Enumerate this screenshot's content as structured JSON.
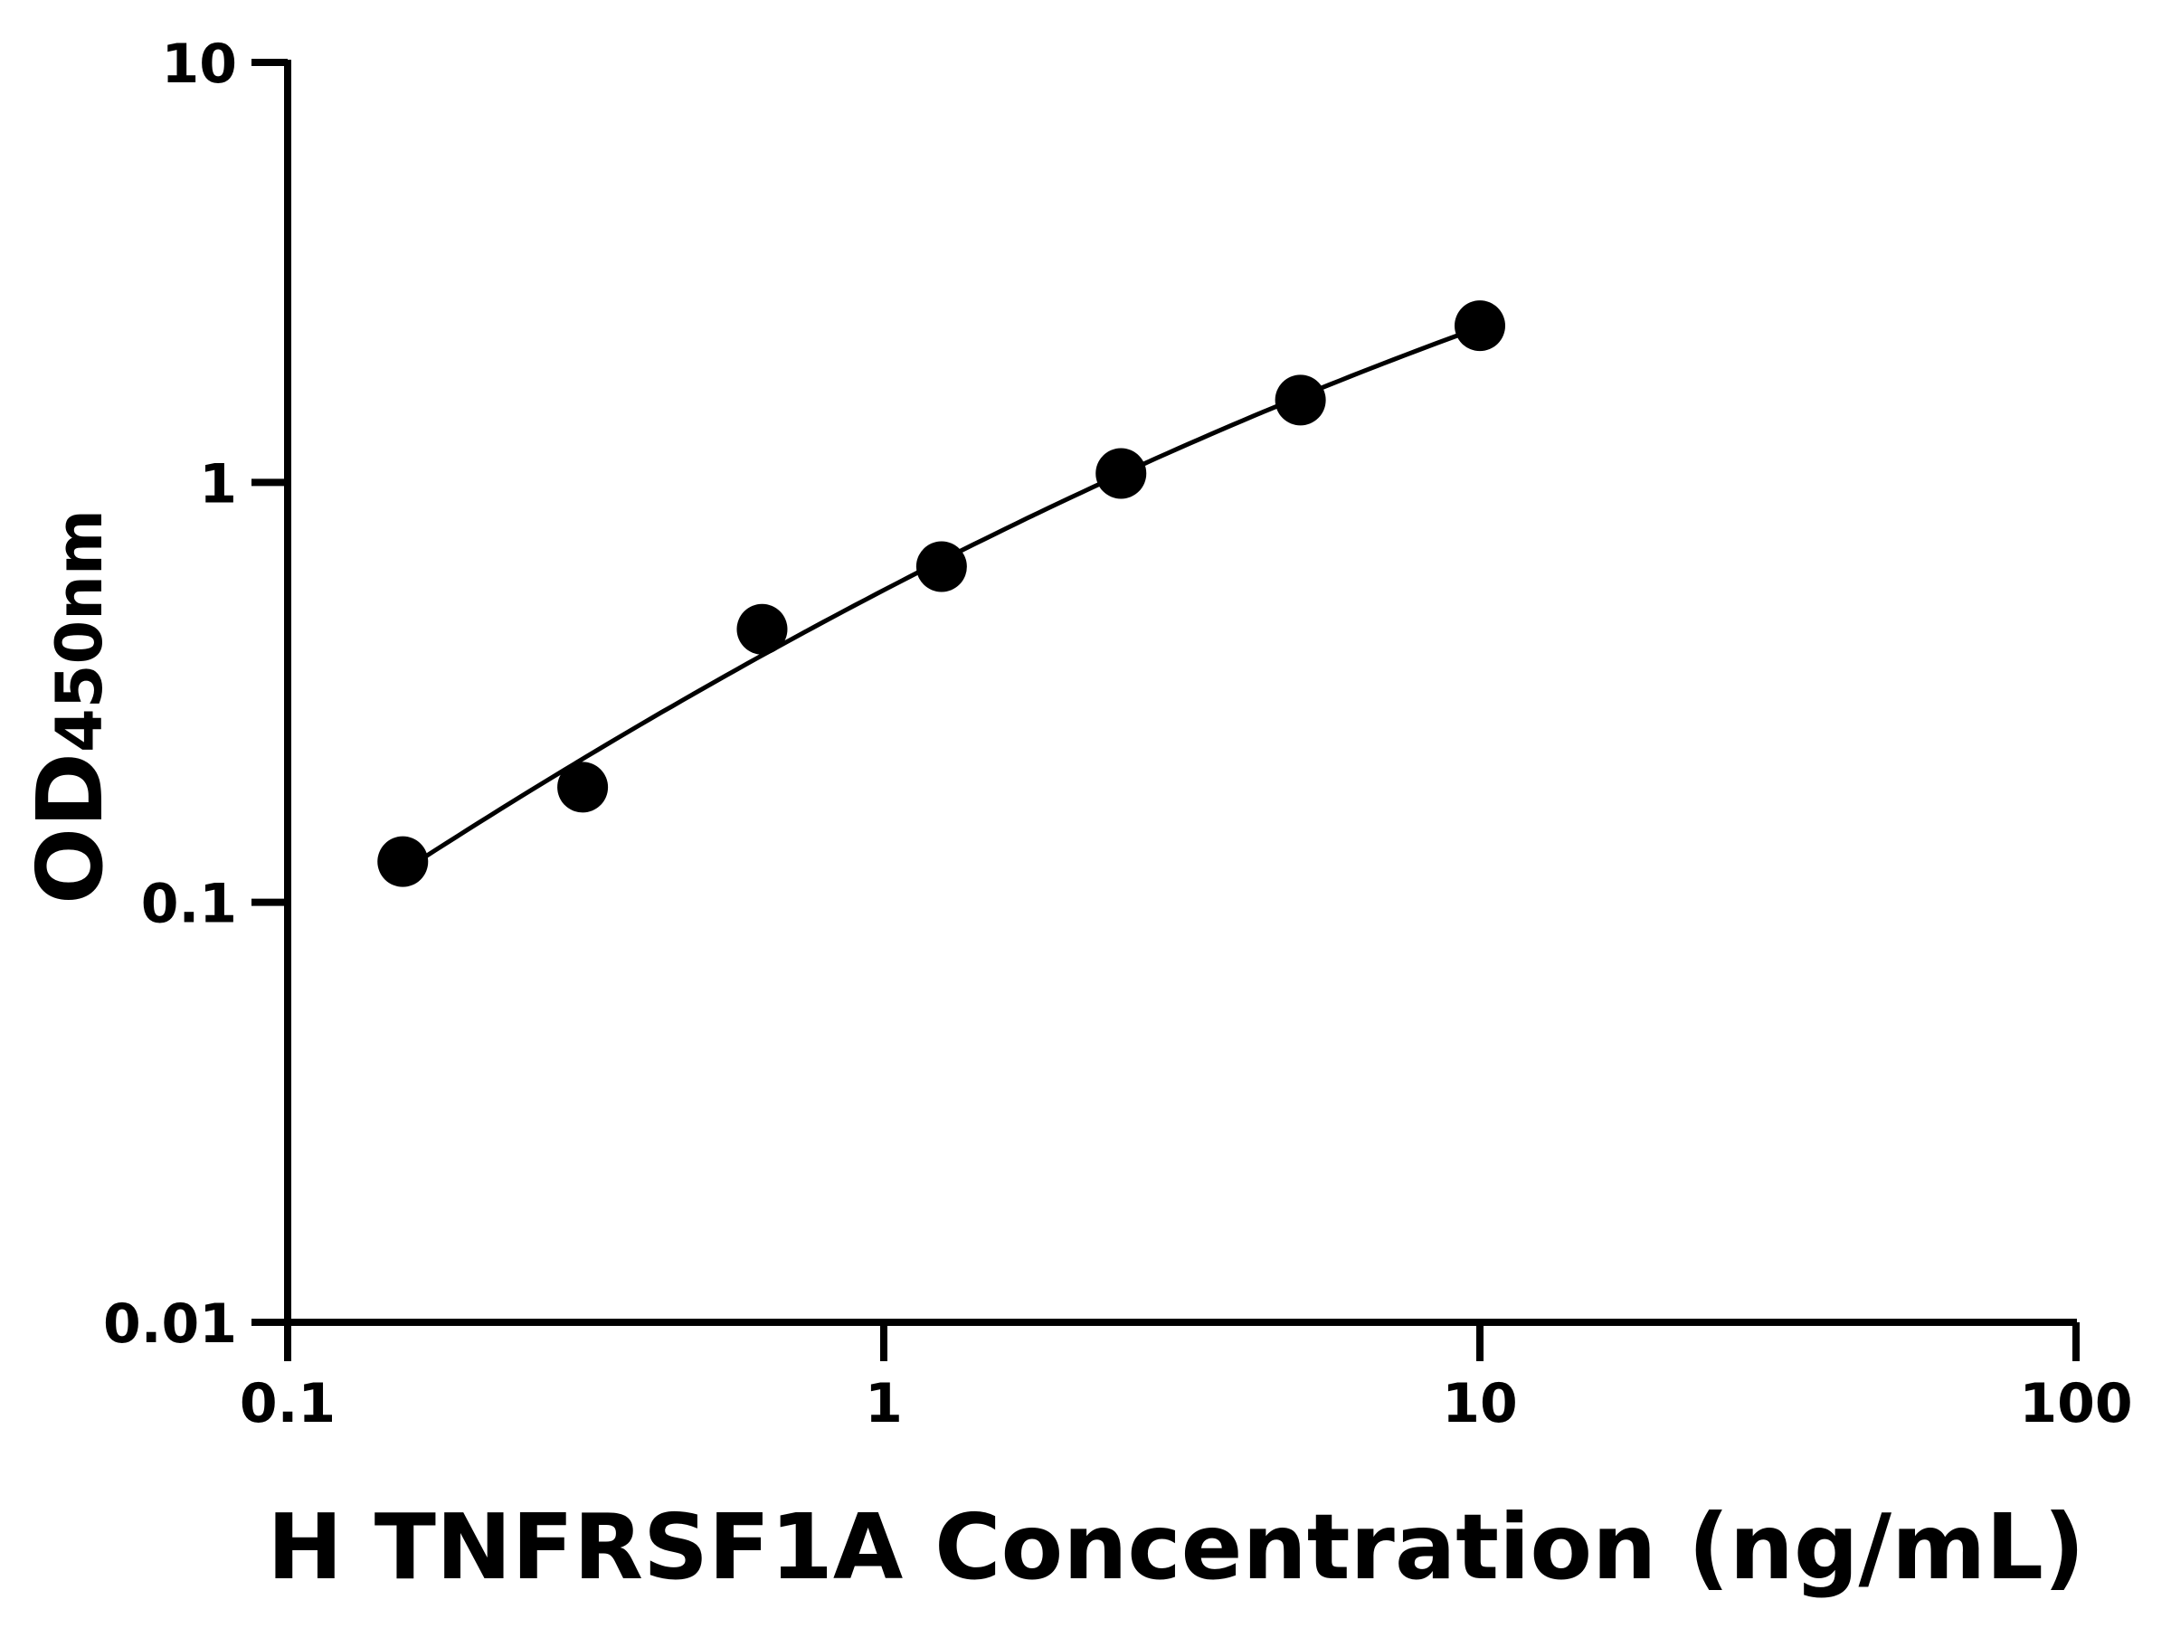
{
  "chart_data": {
    "type": "scatter",
    "xlabel": "H TNFRSF1A Concentration (ng/mL)",
    "ylabel_main": "OD",
    "ylabel_sub": "450nm",
    "x_scale": "log",
    "y_scale": "log",
    "xlim": [
      0.1,
      100
    ],
    "ylim": [
      0.01,
      10
    ],
    "x_ticks": [
      "0.1",
      "1",
      "10",
      "100"
    ],
    "y_ticks": [
      "0.01",
      "0.1",
      "1",
      "10"
    ],
    "grid": false,
    "fit_curve": true,
    "series": [
      {
        "x": [
          0.156,
          0.3125,
          0.625,
          1.25,
          2.5,
          5,
          10
        ],
        "y": [
          0.125,
          0.188,
          0.447,
          0.63,
          1.05,
          1.57,
          2.36
        ]
      }
    ],
    "colors": {
      "points": "#000000",
      "line": "#000000"
    }
  }
}
